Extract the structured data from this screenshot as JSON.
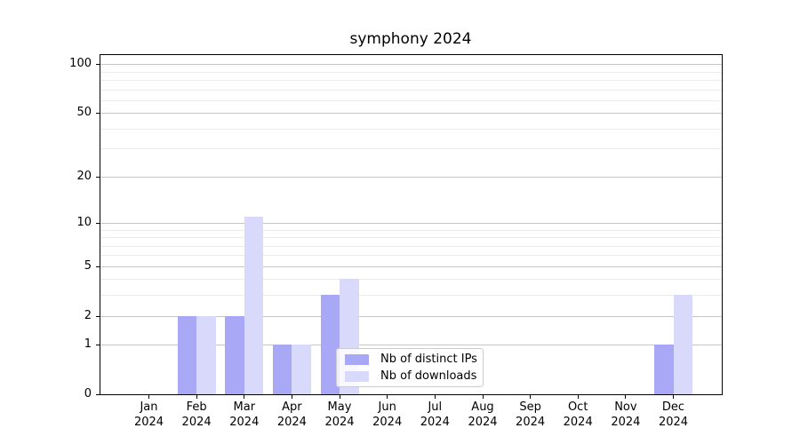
{
  "title": "symphony 2024",
  "chart_data": {
    "type": "bar",
    "title": "symphony 2024",
    "categories": [
      "Jan 2024",
      "Feb 2024",
      "Mar 2024",
      "Apr 2024",
      "May 2024",
      "Jun 2024",
      "Jul 2024",
      "Aug 2024",
      "Sep 2024",
      "Oct 2024",
      "Nov 2024",
      "Dec 2024"
    ],
    "series": [
      {
        "name": "Nb of distinct IPs",
        "color": "#a8a8f6",
        "values": [
          0,
          2,
          2,
          1,
          3,
          0,
          0,
          0,
          0,
          0,
          0,
          1
        ]
      },
      {
        "name": "Nb of downloads",
        "color": "#d9d9fb",
        "values": [
          0,
          2,
          11,
          1,
          4,
          0,
          0,
          0,
          0,
          0,
          0,
          3
        ]
      }
    ],
    "xlabel": "",
    "ylabel": "",
    "yscale": "log1p",
    "ylim": [
      0,
      113.6
    ],
    "yticks": [
      0,
      1,
      2,
      5,
      10,
      20,
      50,
      100
    ],
    "yticks_minor": [
      3,
      4,
      6,
      7,
      8,
      9,
      30,
      40,
      60,
      70,
      80,
      90
    ],
    "grid": "horizontal",
    "legend_position": "lower center",
    "colors": {
      "grid_major": "#c6c6c6",
      "grid_minor": "#ebebeb",
      "axis": "#000000"
    }
  }
}
